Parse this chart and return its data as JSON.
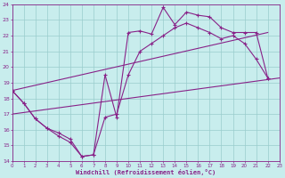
{
  "bg_color": "#c8eded",
  "line_color": "#882288",
  "grid_color": "#99cccc",
  "xlim": [
    0,
    23
  ],
  "ylim": [
    14,
    24
  ],
  "xticks": [
    0,
    1,
    2,
    3,
    4,
    5,
    6,
    7,
    8,
    9,
    10,
    11,
    12,
    13,
    14,
    15,
    16,
    17,
    18,
    19,
    20,
    21,
    22,
    23
  ],
  "yticks": [
    14,
    15,
    16,
    17,
    18,
    19,
    20,
    21,
    22,
    23,
    24
  ],
  "xlabel": "Windchill (Refroidissement éolien,°C)",
  "series1_x": [
    0,
    1,
    2,
    3,
    4,
    5,
    6,
    7,
    8,
    9,
    10,
    11,
    12,
    13,
    14,
    15,
    16,
    17,
    18,
    19,
    20,
    21,
    22
  ],
  "series1_y": [
    18.5,
    17.7,
    16.7,
    16.1,
    15.6,
    15.2,
    14.3,
    14.4,
    19.5,
    16.8,
    22.2,
    22.3,
    22.1,
    23.8,
    22.7,
    23.5,
    23.3,
    23.2,
    22.5,
    22.2,
    22.2,
    22.2,
    19.3
  ],
  "series2_x": [
    0,
    1,
    2,
    3,
    4,
    5,
    6,
    7,
    8,
    9,
    10,
    11,
    12,
    13,
    14,
    15,
    16,
    17,
    18,
    19,
    20,
    21,
    22
  ],
  "series2_y": [
    18.5,
    17.7,
    16.7,
    16.1,
    15.8,
    15.4,
    14.3,
    14.4,
    16.8,
    17.0,
    19.5,
    21.0,
    21.5,
    22.0,
    22.5,
    22.8,
    22.5,
    22.2,
    21.8,
    22.0,
    21.5,
    20.5,
    19.3
  ],
  "trend1_x": [
    0,
    23
  ],
  "trend1_y": [
    17.0,
    19.3
  ],
  "trend2_x": [
    0,
    22
  ],
  "trend2_y": [
    18.5,
    22.2
  ]
}
